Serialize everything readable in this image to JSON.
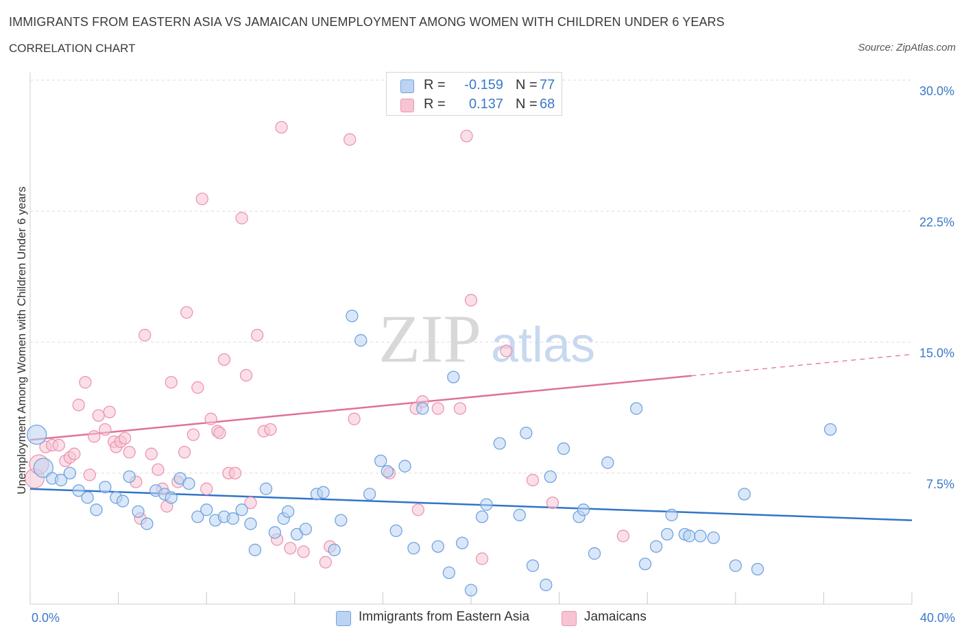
{
  "header": {
    "title": "IMMIGRANTS FROM EASTERN ASIA VS JAMAICAN UNEMPLOYMENT AMONG WOMEN WITH CHILDREN UNDER 6 YEARS",
    "subtitle": "CORRELATION CHART",
    "source": "Source: ZipAtlas.com"
  },
  "watermark": {
    "zip": "ZIP",
    "atlas": "atlas"
  },
  "legend_stats": [
    {
      "series": "Immigrants from Eastern Asia",
      "r_label": "R =",
      "r_value": "-0.159",
      "n_label": "N =",
      "n_value": "77",
      "color": "#6fa3e0"
    },
    {
      "series": "Jamaicans",
      "r_label": "R =",
      "r_value": "0.137",
      "n_label": "N =",
      "n_value": "68",
      "color": "#f0a0bc"
    }
  ],
  "colors": {
    "blue_fill": "#bcd3f3",
    "blue_stroke": "#6fa3e0",
    "blue_line": "#2f74c8",
    "pink_fill": "#f7c4d3",
    "pink_stroke": "#eb95b1",
    "pink_line": "#e0709a",
    "grid": "#dcdcdc",
    "tick_label": "#3a78c9"
  },
  "chart_data": {
    "type": "scatter",
    "title": "IMMIGRANTS FROM EASTERN ASIA VS JAMAICAN UNEMPLOYMENT AMONG WOMEN WITH CHILDREN UNDER 6 YEARS",
    "xlabel": "",
    "ylabel": "Unemployment Among Women with Children Under 6 years",
    "xlim": [
      0,
      40
    ],
    "ylim": [
      0,
      30
    ],
    "x_ticks": [
      0,
      40
    ],
    "x_tick_labels": [
      "0.0%",
      "40.0%"
    ],
    "y_ticks": [
      7.5,
      15,
      22.5,
      30
    ],
    "y_tick_labels": [
      "7.5%",
      "15.0%",
      "22.5%",
      "30.0%"
    ],
    "grid": true,
    "legend": "bottom-center",
    "series": [
      {
        "name": "Immigrants from Eastern Asia",
        "trend": {
          "x": [
            0,
            40
          ],
          "y": [
            6.6,
            4.8
          ],
          "dashed_from": null
        },
        "points": [
          {
            "x": 0.3,
            "y": 9.7,
            "big": true
          },
          {
            "x": 0.6,
            "y": 7.8,
            "big": true
          },
          {
            "x": 1.0,
            "y": 7.2
          },
          {
            "x": 1.4,
            "y": 7.1
          },
          {
            "x": 1.8,
            "y": 7.5
          },
          {
            "x": 2.2,
            "y": 6.5
          },
          {
            "x": 2.6,
            "y": 6.1
          },
          {
            "x": 3.0,
            "y": 5.4
          },
          {
            "x": 3.4,
            "y": 6.7
          },
          {
            "x": 3.9,
            "y": 6.1
          },
          {
            "x": 4.2,
            "y": 5.9
          },
          {
            "x": 4.5,
            "y": 7.3
          },
          {
            "x": 4.9,
            "y": 5.3
          },
          {
            "x": 5.3,
            "y": 4.6
          },
          {
            "x": 5.7,
            "y": 6.5
          },
          {
            "x": 6.1,
            "y": 6.3
          },
          {
            "x": 6.4,
            "y": 6.1
          },
          {
            "x": 6.8,
            "y": 7.2
          },
          {
            "x": 7.2,
            "y": 6.9
          },
          {
            "x": 7.6,
            "y": 5.0
          },
          {
            "x": 8.0,
            "y": 5.4
          },
          {
            "x": 8.4,
            "y": 4.8
          },
          {
            "x": 8.8,
            "y": 5.0
          },
          {
            "x": 9.2,
            "y": 4.9
          },
          {
            "x": 9.6,
            "y": 5.4
          },
          {
            "x": 10.0,
            "y": 4.6
          },
          {
            "x": 10.2,
            "y": 3.1
          },
          {
            "x": 10.7,
            "y": 6.6
          },
          {
            "x": 11.1,
            "y": 4.1
          },
          {
            "x": 11.5,
            "y": 4.9
          },
          {
            "x": 11.7,
            "y": 5.3
          },
          {
            "x": 12.1,
            "y": 4.0
          },
          {
            "x": 12.5,
            "y": 4.3
          },
          {
            "x": 13.0,
            "y": 6.3
          },
          {
            "x": 13.3,
            "y": 6.4
          },
          {
            "x": 13.8,
            "y": 3.1
          },
          {
            "x": 14.1,
            "y": 4.8
          },
          {
            "x": 14.6,
            "y": 16.5
          },
          {
            "x": 15.0,
            "y": 15.1
          },
          {
            "x": 15.4,
            "y": 6.3
          },
          {
            "x": 15.9,
            "y": 8.2
          },
          {
            "x": 16.2,
            "y": 7.6
          },
          {
            "x": 16.6,
            "y": 4.2
          },
          {
            "x": 17.0,
            "y": 7.9
          },
          {
            "x": 17.4,
            "y": 3.2
          },
          {
            "x": 17.8,
            "y": 11.2
          },
          {
            "x": 18.5,
            "y": 3.3
          },
          {
            "x": 19.0,
            "y": 1.8
          },
          {
            "x": 19.2,
            "y": 13.0
          },
          {
            "x": 19.6,
            "y": 3.5
          },
          {
            "x": 20.0,
            "y": 0.8
          },
          {
            "x": 20.5,
            "y": 5.0
          },
          {
            "x": 20.7,
            "y": 5.7
          },
          {
            "x": 21.3,
            "y": 9.2
          },
          {
            "x": 22.2,
            "y": 5.1
          },
          {
            "x": 22.5,
            "y": 9.8
          },
          {
            "x": 22.8,
            "y": 2.2
          },
          {
            "x": 23.4,
            "y": 1.1
          },
          {
            "x": 23.6,
            "y": 7.3
          },
          {
            "x": 24.2,
            "y": 8.9
          },
          {
            "x": 24.9,
            "y": 5.0
          },
          {
            "x": 25.1,
            "y": 5.4
          },
          {
            "x": 25.6,
            "y": 2.9
          },
          {
            "x": 26.2,
            "y": 8.1
          },
          {
            "x": 27.5,
            "y": 11.2
          },
          {
            "x": 27.9,
            "y": 2.3
          },
          {
            "x": 28.4,
            "y": 3.3
          },
          {
            "x": 28.9,
            "y": 4.0
          },
          {
            "x": 29.1,
            "y": 5.1
          },
          {
            "x": 29.7,
            "y": 4.0
          },
          {
            "x": 29.9,
            "y": 3.9
          },
          {
            "x": 30.4,
            "y": 3.9
          },
          {
            "x": 31.0,
            "y": 3.8
          },
          {
            "x": 32.0,
            "y": 2.2
          },
          {
            "x": 32.4,
            "y": 6.3
          },
          {
            "x": 33.0,
            "y": 2.0
          },
          {
            "x": 36.3,
            "y": 10.0
          }
        ]
      },
      {
        "name": "Jamaicans",
        "trend": {
          "x": [
            0,
            40
          ],
          "y": [
            9.4,
            14.3
          ],
          "dashed_from": 30.0
        },
        "points": [
          {
            "x": 0.2,
            "y": 7.2,
            "big": true
          },
          {
            "x": 0.4,
            "y": 8.0,
            "big": true
          },
          {
            "x": 0.7,
            "y": 9.0
          },
          {
            "x": 1.0,
            "y": 9.1
          },
          {
            "x": 1.3,
            "y": 9.1
          },
          {
            "x": 1.6,
            "y": 8.2
          },
          {
            "x": 1.8,
            "y": 8.4
          },
          {
            "x": 2.0,
            "y": 8.6
          },
          {
            "x": 2.2,
            "y": 11.4
          },
          {
            "x": 2.5,
            "y": 12.7
          },
          {
            "x": 2.7,
            "y": 7.4
          },
          {
            "x": 2.9,
            "y": 9.6
          },
          {
            "x": 3.1,
            "y": 10.8
          },
          {
            "x": 3.4,
            "y": 10.0
          },
          {
            "x": 3.6,
            "y": 11.0
          },
          {
            "x": 3.8,
            "y": 9.3
          },
          {
            "x": 3.9,
            "y": 9.0
          },
          {
            "x": 4.1,
            "y": 9.3
          },
          {
            "x": 4.3,
            "y": 9.5
          },
          {
            "x": 4.5,
            "y": 8.7
          },
          {
            "x": 4.8,
            "y": 7.0
          },
          {
            "x": 5.0,
            "y": 4.9
          },
          {
            "x": 5.2,
            "y": 15.4
          },
          {
            "x": 5.5,
            "y": 8.6
          },
          {
            "x": 5.8,
            "y": 7.7
          },
          {
            "x": 6.0,
            "y": 6.6
          },
          {
            "x": 6.2,
            "y": 5.6
          },
          {
            "x": 6.4,
            "y": 12.7
          },
          {
            "x": 6.7,
            "y": 7.0
          },
          {
            "x": 7.0,
            "y": 8.7
          },
          {
            "x": 7.1,
            "y": 16.7
          },
          {
            "x": 7.4,
            "y": 9.7
          },
          {
            "x": 7.6,
            "y": 12.4
          },
          {
            "x": 7.8,
            "y": 23.2
          },
          {
            "x": 8.0,
            "y": 6.6
          },
          {
            "x": 8.2,
            "y": 10.6
          },
          {
            "x": 8.5,
            "y": 9.9
          },
          {
            "x": 8.6,
            "y": 9.8
          },
          {
            "x": 8.8,
            "y": 14.0
          },
          {
            "x": 9.0,
            "y": 7.5
          },
          {
            "x": 9.3,
            "y": 7.5
          },
          {
            "x": 9.6,
            "y": 22.1
          },
          {
            "x": 9.8,
            "y": 13.1
          },
          {
            "x": 10.0,
            "y": 5.8
          },
          {
            "x": 10.3,
            "y": 15.4
          },
          {
            "x": 10.6,
            "y": 9.9
          },
          {
            "x": 10.9,
            "y": 10.0
          },
          {
            "x": 11.2,
            "y": 3.7
          },
          {
            "x": 11.4,
            "y": 27.3
          },
          {
            "x": 11.8,
            "y": 3.2
          },
          {
            "x": 12.4,
            "y": 3.0
          },
          {
            "x": 13.4,
            "y": 2.4
          },
          {
            "x": 13.6,
            "y": 3.3
          },
          {
            "x": 14.5,
            "y": 26.6
          },
          {
            "x": 14.7,
            "y": 10.6
          },
          {
            "x": 16.3,
            "y": 7.5
          },
          {
            "x": 17.5,
            "y": 11.2
          },
          {
            "x": 17.6,
            "y": 5.4
          },
          {
            "x": 17.8,
            "y": 11.6
          },
          {
            "x": 18.5,
            "y": 11.2
          },
          {
            "x": 19.5,
            "y": 11.2
          },
          {
            "x": 19.8,
            "y": 26.8
          },
          {
            "x": 20.0,
            "y": 17.4
          },
          {
            "x": 20.5,
            "y": 2.6
          },
          {
            "x": 21.6,
            "y": 14.5
          },
          {
            "x": 22.8,
            "y": 7.1
          },
          {
            "x": 23.7,
            "y": 5.8
          },
          {
            "x": 26.9,
            "y": 3.9
          }
        ]
      }
    ]
  },
  "y_axis_label": "Unemployment Among Women with Children Under 6 years"
}
